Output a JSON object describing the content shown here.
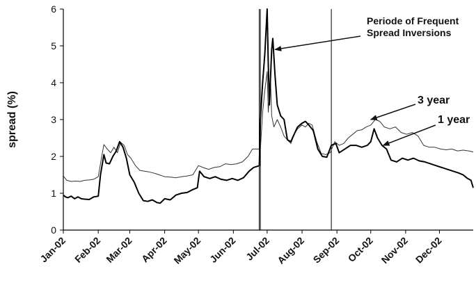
{
  "chart_data": {
    "type": "line",
    "ylabel": "spread (%)",
    "xlabel": "",
    "ylim": [
      0,
      6
    ],
    "yticks": [
      0,
      1,
      2,
      3,
      4,
      5,
      6
    ],
    "xlim": [
      "2002-01-01",
      "2002-12-31"
    ],
    "xticks": [
      {
        "date": "2002-01-01",
        "label": "Jan-02"
      },
      {
        "date": "2002-02-01",
        "label": "Feb-02"
      },
      {
        "date": "2002-03-01",
        "label": "Mar-02"
      },
      {
        "date": "2002-04-01",
        "label": "Apr-02"
      },
      {
        "date": "2002-05-01",
        "label": "May-02"
      },
      {
        "date": "2002-06-01",
        "label": "Jun-02"
      },
      {
        "date": "2002-07-01",
        "label": "Jul-02"
      },
      {
        "date": "2002-08-01",
        "label": "Aug-02"
      },
      {
        "date": "2002-09-01",
        "label": "Sep-02"
      },
      {
        "date": "2002-10-01",
        "label": "Oct-02"
      },
      {
        "date": "2002-11-01",
        "label": "Nov-02"
      },
      {
        "date": "2002-12-01",
        "label": "Dec-02"
      }
    ],
    "grid": false,
    "legend": "none",
    "vertical_lines": [
      "2002-06-24",
      "2002-06-25",
      "2002-08-27"
    ],
    "series": [
      {
        "name": "3 year",
        "color": "#333333",
        "stroke": "thin",
        "points": [
          [
            "2002-01-01",
            1.47
          ],
          [
            "2002-01-04",
            1.35
          ],
          [
            "2002-01-08",
            1.32
          ],
          [
            "2002-01-12",
            1.33
          ],
          [
            "2002-01-16",
            1.32
          ],
          [
            "2002-01-20",
            1.35
          ],
          [
            "2002-01-24",
            1.36
          ],
          [
            "2002-01-28",
            1.38
          ],
          [
            "2002-02-01",
            1.45
          ],
          [
            "2002-02-04",
            1.98
          ],
          [
            "2002-02-06",
            2.32
          ],
          [
            "2002-02-09",
            2.2
          ],
          [
            "2002-02-12",
            2.1
          ],
          [
            "2002-02-15",
            2.25
          ],
          [
            "2002-02-18",
            2.1
          ],
          [
            "2002-02-21",
            2.38
          ],
          [
            "2002-02-24",
            2.3
          ],
          [
            "2002-02-27",
            2.05
          ],
          [
            "2002-03-02",
            1.95
          ],
          [
            "2002-03-06",
            1.75
          ],
          [
            "2002-03-10",
            1.62
          ],
          [
            "2002-03-14",
            1.6
          ],
          [
            "2002-03-18",
            1.58
          ],
          [
            "2002-03-22",
            1.55
          ],
          [
            "2002-03-25",
            1.52
          ],
          [
            "2002-04-01",
            1.45
          ],
          [
            "2002-04-06",
            1.44
          ],
          [
            "2002-04-11",
            1.42
          ],
          [
            "2002-04-16",
            1.45
          ],
          [
            "2002-04-21",
            1.47
          ],
          [
            "2002-04-26",
            1.5
          ],
          [
            "2002-05-01",
            1.75
          ],
          [
            "2002-05-05",
            1.7
          ],
          [
            "2002-05-10",
            1.65
          ],
          [
            "2002-05-15",
            1.7
          ],
          [
            "2002-05-20",
            1.72
          ],
          [
            "2002-05-25",
            1.8
          ],
          [
            "2002-05-30",
            1.78
          ],
          [
            "2002-06-04",
            1.8
          ],
          [
            "2002-06-09",
            1.85
          ],
          [
            "2002-06-14",
            2.0
          ],
          [
            "2002-06-18",
            2.2
          ],
          [
            "2002-06-22",
            2.2
          ],
          [
            "2002-06-25",
            2.2
          ],
          [
            "2002-06-27",
            3.2
          ],
          [
            "2002-06-29",
            3.8
          ],
          [
            "2002-07-01",
            4.3
          ],
          [
            "2002-07-02",
            3.2
          ],
          [
            "2002-07-04",
            4.1
          ],
          [
            "2002-07-05",
            3.1
          ],
          [
            "2002-07-07",
            2.8
          ],
          [
            "2002-07-10",
            3.0
          ],
          [
            "2002-07-13",
            2.8
          ],
          [
            "2002-07-16",
            2.55
          ],
          [
            "2002-07-19",
            2.45
          ],
          [
            "2002-07-22",
            2.35
          ],
          [
            "2002-07-25",
            2.6
          ],
          [
            "2002-07-28",
            2.75
          ],
          [
            "2002-08-01",
            2.85
          ],
          [
            "2002-08-04",
            2.8
          ],
          [
            "2002-08-07",
            2.9
          ],
          [
            "2002-08-10",
            2.85
          ],
          [
            "2002-08-14",
            2.4
          ],
          [
            "2002-08-18",
            2.08
          ],
          [
            "2002-08-22",
            2.05
          ],
          [
            "2002-08-26",
            2.1
          ],
          [
            "2002-08-30",
            2.4
          ],
          [
            "2002-09-03",
            2.3
          ],
          [
            "2002-09-07",
            2.35
          ],
          [
            "2002-09-11",
            2.5
          ],
          [
            "2002-09-15",
            2.6
          ],
          [
            "2002-09-19",
            2.7
          ],
          [
            "2002-09-23",
            2.72
          ],
          [
            "2002-09-27",
            2.8
          ],
          [
            "2002-10-01",
            2.85
          ],
          [
            "2002-10-05",
            3.0
          ],
          [
            "2002-10-09",
            2.95
          ],
          [
            "2002-10-13",
            2.8
          ],
          [
            "2002-10-18",
            2.75
          ],
          [
            "2002-10-23",
            2.8
          ],
          [
            "2002-10-28",
            2.65
          ],
          [
            "2002-11-02",
            2.6
          ],
          [
            "2002-11-07",
            2.65
          ],
          [
            "2002-11-12",
            2.55
          ],
          [
            "2002-11-17",
            2.3
          ],
          [
            "2002-11-22",
            2.25
          ],
          [
            "2002-11-27",
            2.25
          ],
          [
            "2002-12-02",
            2.2
          ],
          [
            "2002-12-07",
            2.18
          ],
          [
            "2002-12-12",
            2.2
          ],
          [
            "2002-12-17",
            2.15
          ],
          [
            "2002-12-22",
            2.17
          ],
          [
            "2002-12-27",
            2.15
          ],
          [
            "2002-12-31",
            2.12
          ]
        ]
      },
      {
        "name": "1 year",
        "color": "#000000",
        "stroke": "thick",
        "points": [
          [
            "2002-01-01",
            0.95
          ],
          [
            "2002-01-03",
            0.9
          ],
          [
            "2002-01-05",
            0.88
          ],
          [
            "2002-01-08",
            0.92
          ],
          [
            "2002-01-11",
            0.85
          ],
          [
            "2002-01-14",
            0.9
          ],
          [
            "2002-01-17",
            0.85
          ],
          [
            "2002-01-20",
            0.84
          ],
          [
            "2002-01-24",
            0.83
          ],
          [
            "2002-01-28",
            0.9
          ],
          [
            "2002-02-01",
            0.92
          ],
          [
            "2002-02-03",
            1.5
          ],
          [
            "2002-02-06",
            2.05
          ],
          [
            "2002-02-08",
            1.82
          ],
          [
            "2002-02-11",
            1.8
          ],
          [
            "2002-02-14",
            2.0
          ],
          [
            "2002-02-17",
            2.15
          ],
          [
            "2002-02-20",
            2.4
          ],
          [
            "2002-02-23",
            2.25
          ],
          [
            "2002-02-26",
            1.95
          ],
          [
            "2002-03-01",
            1.5
          ],
          [
            "2002-03-05",
            1.3
          ],
          [
            "2002-03-09",
            1.0
          ],
          [
            "2002-03-13",
            0.8
          ],
          [
            "2002-03-17",
            0.78
          ],
          [
            "2002-03-21",
            0.82
          ],
          [
            "2002-03-25",
            0.75
          ],
          [
            "2002-03-28",
            0.73
          ],
          [
            "2002-04-01",
            0.85
          ],
          [
            "2002-04-06",
            0.82
          ],
          [
            "2002-04-11",
            0.95
          ],
          [
            "2002-04-16",
            1.0
          ],
          [
            "2002-04-21",
            1.02
          ],
          [
            "2002-04-26",
            1.1
          ],
          [
            "2002-04-30",
            1.15
          ],
          [
            "2002-05-02",
            1.6
          ],
          [
            "2002-05-06",
            1.45
          ],
          [
            "2002-05-11",
            1.4
          ],
          [
            "2002-05-16",
            1.45
          ],
          [
            "2002-05-21",
            1.38
          ],
          [
            "2002-05-26",
            1.35
          ],
          [
            "2002-05-31",
            1.4
          ],
          [
            "2002-06-05",
            1.35
          ],
          [
            "2002-06-10",
            1.42
          ],
          [
            "2002-06-15",
            1.6
          ],
          [
            "2002-06-19",
            1.7
          ],
          [
            "2002-06-24",
            1.75
          ],
          [
            "2002-06-25",
            3.0
          ],
          [
            "2002-06-27",
            4.0
          ],
          [
            "2002-06-29",
            4.8
          ],
          [
            "2002-07-01",
            6.0
          ],
          [
            "2002-07-02",
            4.5
          ],
          [
            "2002-07-03",
            3.4
          ],
          [
            "2002-07-05",
            4.9
          ],
          [
            "2002-07-06",
            5.2
          ],
          [
            "2002-07-08",
            4.2
          ],
          [
            "2002-07-10",
            3.4
          ],
          [
            "2002-07-13",
            3.1
          ],
          [
            "2002-07-16",
            3.0
          ],
          [
            "2002-07-19",
            2.45
          ],
          [
            "2002-07-22",
            2.4
          ],
          [
            "2002-07-25",
            2.6
          ],
          [
            "2002-07-28",
            2.8
          ],
          [
            "2002-08-01",
            2.9
          ],
          [
            "2002-08-04",
            2.95
          ],
          [
            "2002-08-07",
            2.85
          ],
          [
            "2002-08-11",
            2.7
          ],
          [
            "2002-08-15",
            2.2
          ],
          [
            "2002-08-19",
            2.0
          ],
          [
            "2002-08-23",
            1.98
          ],
          [
            "2002-08-27",
            2.3
          ],
          [
            "2002-08-31",
            2.35
          ],
          [
            "2002-09-03",
            2.1
          ],
          [
            "2002-09-08",
            2.2
          ],
          [
            "2002-09-13",
            2.3
          ],
          [
            "2002-09-18",
            2.3
          ],
          [
            "2002-09-23",
            2.25
          ],
          [
            "2002-09-28",
            2.3
          ],
          [
            "2002-10-01",
            2.4
          ],
          [
            "2002-10-04",
            2.75
          ],
          [
            "2002-10-07",
            2.5
          ],
          [
            "2002-10-11",
            2.3
          ],
          [
            "2002-10-15",
            2.2
          ],
          [
            "2002-10-19",
            1.9
          ],
          [
            "2002-10-24",
            1.85
          ],
          [
            "2002-10-29",
            1.95
          ],
          [
            "2002-11-03",
            1.9
          ],
          [
            "2002-11-08",
            1.95
          ],
          [
            "2002-11-13",
            1.88
          ],
          [
            "2002-11-18",
            1.85
          ],
          [
            "2002-11-23",
            1.8
          ],
          [
            "2002-11-28",
            1.75
          ],
          [
            "2002-12-03",
            1.7
          ],
          [
            "2002-12-08",
            1.65
          ],
          [
            "2002-12-13",
            1.6
          ],
          [
            "2002-12-18",
            1.55
          ],
          [
            "2002-12-22",
            1.5
          ],
          [
            "2002-12-26",
            1.4
          ],
          [
            "2002-12-29",
            1.35
          ],
          [
            "2002-12-31",
            1.15
          ]
        ]
      }
    ],
    "annotations": [
      {
        "text_lines": [
          "Periode of Frequent",
          "Spread Inversions"
        ],
        "arrow_to": [
          "2002-07-08",
          4.9
        ]
      },
      {
        "text_lines": [
          "3 year"
        ],
        "arrow_to": [
          "2002-10-01",
          3.0
        ]
      },
      {
        "text_lines": [
          "1 year"
        ],
        "arrow_to": [
          "2002-10-12",
          2.3
        ]
      }
    ]
  }
}
